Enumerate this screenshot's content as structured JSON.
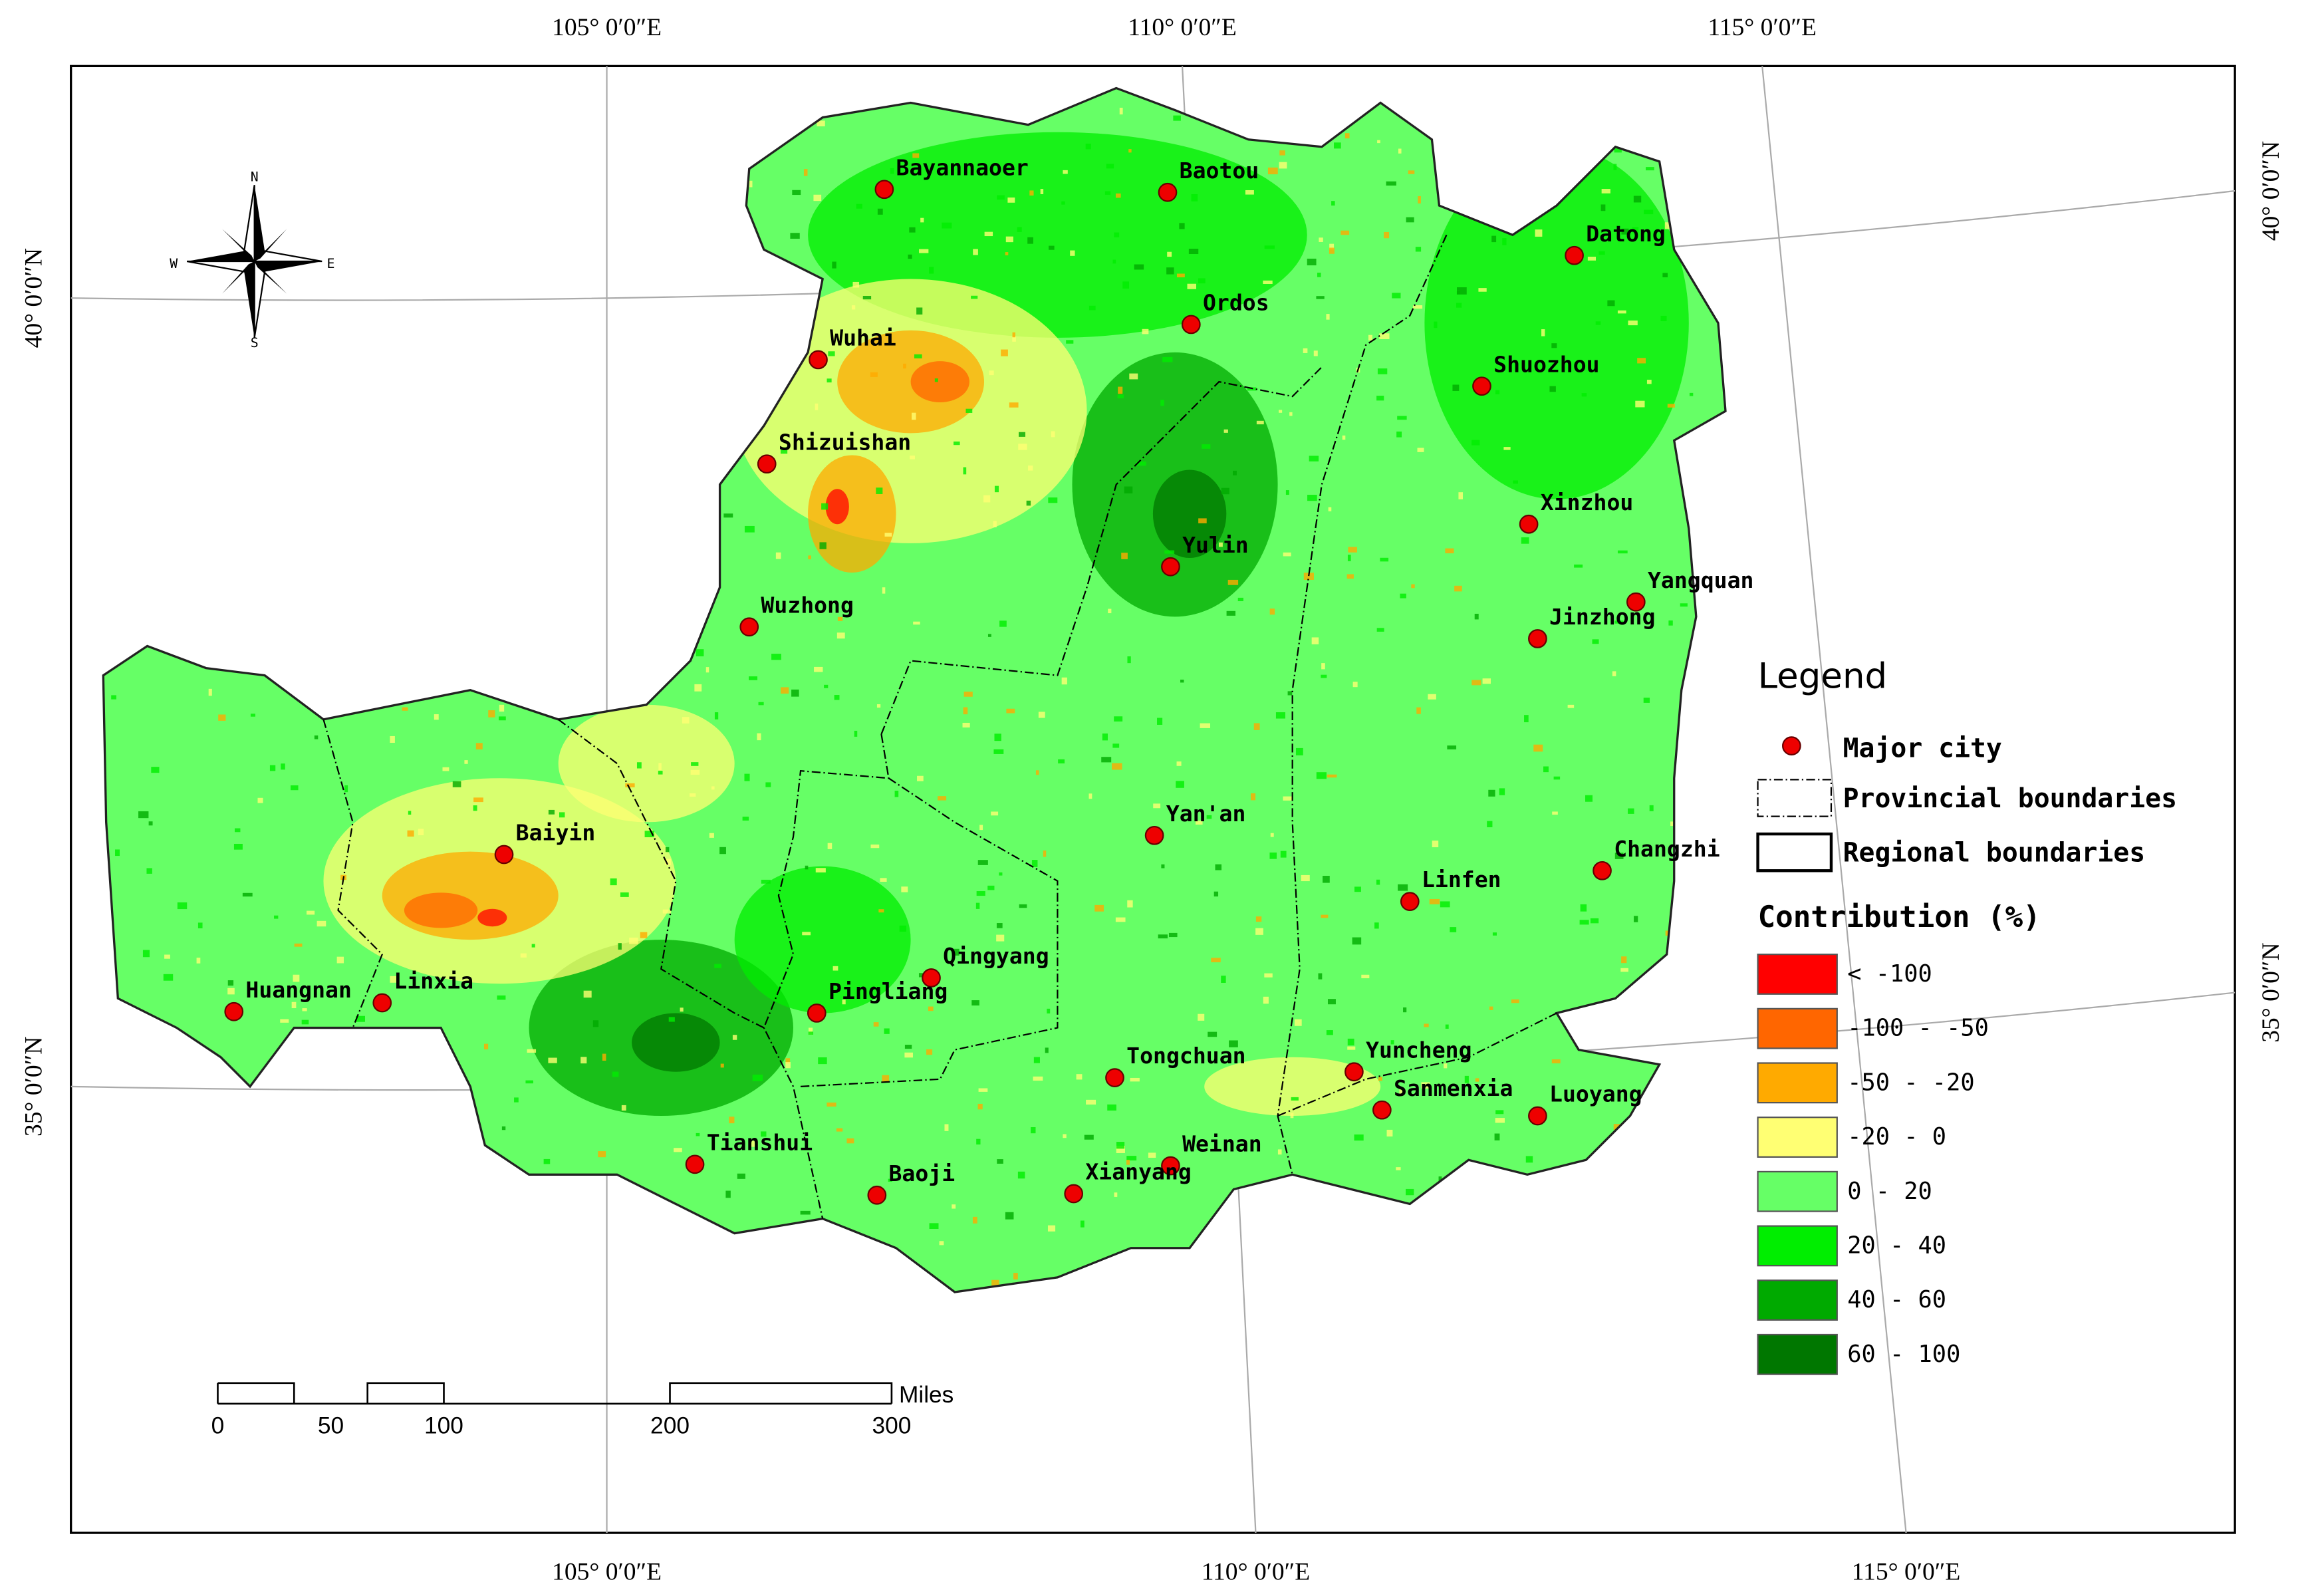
{
  "graticule": {
    "top": [
      "105° 0′0″E",
      "110° 0′0″E",
      "115° 0′0″E"
    ],
    "bottom": [
      "105° 0′0″E",
      "110° 0′0″E",
      "115° 0′0″E"
    ],
    "left": [
      "40° 0′0″N",
      "35° 0′0″N"
    ],
    "right": [
      "40° 0′0″N",
      "35° 0′0″N"
    ]
  },
  "compass": {
    "n": "N",
    "s": "S",
    "e": "E",
    "w": "W"
  },
  "cities": [
    "Bayannaoer",
    "Baotou",
    "Datong",
    "Ordos",
    "Wuhai",
    "Shuozhou",
    "Shizuishan",
    "Xinzhou",
    "Yulin",
    "Yangquan",
    "Wuzhong",
    "Jinzhong",
    "Yan'an",
    "Baiyin",
    "Changzhi",
    "Linfen",
    "Qingyang",
    "Huangnan",
    "Linxia",
    "Pingliang",
    "Tongchuan",
    "Yuncheng",
    "Sanmenxia",
    "Luoyang",
    "Tianshui",
    "Weinan",
    "Baoji",
    "Xianyang"
  ],
  "legend": {
    "title": "Legend",
    "city": "Major city",
    "provincial": "Provincial boundaries",
    "regional": "Regional boundaries",
    "contribution_title": "Contribution (%)",
    "classes": [
      {
        "label": "< -100",
        "color": "#ff0000"
      },
      {
        "label": "-100 - -50",
        "color": "#ff6600"
      },
      {
        "label": "-50 - -20",
        "color": "#ffaa00"
      },
      {
        "label": "-20 - 0",
        "color": "#ffff73"
      },
      {
        "label": "0 - 20",
        "color": "#66ff66"
      },
      {
        "label": "20 - 40",
        "color": "#00ee00"
      },
      {
        "label": "40 - 60",
        "color": "#00aa00"
      },
      {
        "label": "60 - 100",
        "color": "#007700"
      }
    ]
  },
  "scale_bar": {
    "ticks": [
      "0",
      "50",
      "100",
      "200",
      "300"
    ],
    "unit": "Miles"
  }
}
